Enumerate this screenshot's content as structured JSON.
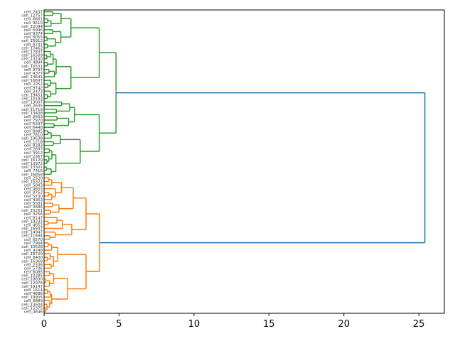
{
  "chart_data": {
    "type": "dendrogram",
    "orientation": "horizontal",
    "title": "",
    "xlabel": "",
    "ylabel": "",
    "xlim": [
      0,
      26.7
    ],
    "x_ticks": [
      0,
      5,
      10,
      15,
      20,
      25
    ],
    "x_tick_labels": [
      "0",
      "5",
      "10",
      "15",
      "20",
      "25"
    ],
    "grid": false,
    "legend": "none",
    "colors": {
      "cluster_green": "#2ca02c",
      "cluster_orange": "#ff7f0e",
      "above_threshold": "#1f77b4",
      "axis": "#000000"
    },
    "clusters": [
      {
        "color": "cluster_green",
        "leaf_count": 46,
        "merge_heights": [
          0.6,
          0.9,
          1.0,
          1.1,
          1.3,
          1.5,
          2.2,
          2.6,
          2.8,
          3.4,
          3.7,
          4.5,
          4.8
        ],
        "top_merge_height": 4.8
      },
      {
        "color": "cluster_orange",
        "leaf_count": 38,
        "merge_heights": [
          0.5,
          0.9,
          1.2,
          1.5,
          1.8,
          2.1,
          2.7,
          2.8,
          3.2,
          3.7
        ],
        "top_merge_height": 3.7
      }
    ],
    "root_merge_height": 25.4,
    "leaf_label_prefix": "cell_"
  }
}
